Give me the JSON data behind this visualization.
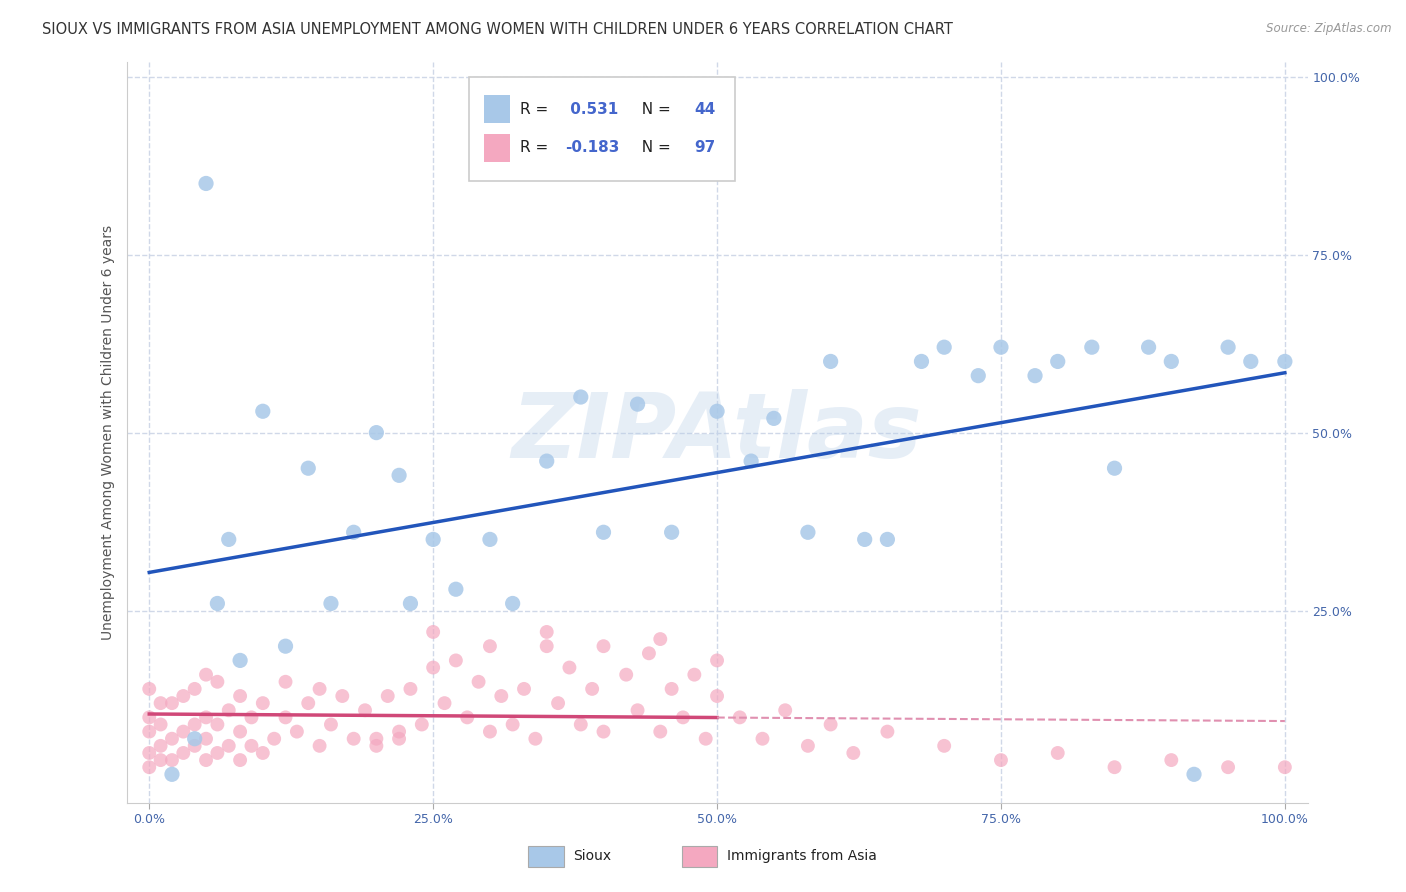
{
  "title": "SIOUX VS IMMIGRANTS FROM ASIA UNEMPLOYMENT AMONG WOMEN WITH CHILDREN UNDER 6 YEARS CORRELATION CHART",
  "source": "Source: ZipAtlas.com",
  "ylabel": "Unemployment Among Women with Children Under 6 years",
  "background_color": "#ffffff",
  "watermark": "ZIPAtlas",
  "sioux_R": 0.531,
  "sioux_N": 44,
  "immigrants_R": -0.183,
  "immigrants_N": 97,
  "sioux_color": "#a8c8e8",
  "immigrants_color": "#f4a8c0",
  "sioux_line_color": "#2255bb",
  "immigrants_line_solid_color": "#d04878",
  "immigrants_line_dash_color": "#e090b0",
  "sioux_scatter_x": [
    0.02,
    0.04,
    0.05,
    0.06,
    0.07,
    0.08,
    0.1,
    0.12,
    0.14,
    0.16,
    0.18,
    0.2,
    0.22,
    0.23,
    0.25,
    0.27,
    0.3,
    0.32,
    0.35,
    0.38,
    0.4,
    0.43,
    0.46,
    0.5,
    0.53,
    0.55,
    0.58,
    0.6,
    0.63,
    0.65,
    0.68,
    0.7,
    0.73,
    0.75,
    0.78,
    0.8,
    0.83,
    0.85,
    0.88,
    0.9,
    0.92,
    0.95,
    0.97,
    1.0
  ],
  "sioux_scatter_y": [
    0.02,
    0.07,
    0.85,
    0.26,
    0.35,
    0.18,
    0.53,
    0.2,
    0.45,
    0.26,
    0.36,
    0.5,
    0.44,
    0.26,
    0.35,
    0.28,
    0.35,
    0.26,
    0.46,
    0.55,
    0.36,
    0.54,
    0.36,
    0.53,
    0.46,
    0.52,
    0.36,
    0.6,
    0.35,
    0.35,
    0.6,
    0.62,
    0.58,
    0.62,
    0.58,
    0.6,
    0.62,
    0.45,
    0.62,
    0.6,
    0.02,
    0.62,
    0.6,
    0.6
  ],
  "immigrants_scatter_x": [
    0.0,
    0.0,
    0.0,
    0.0,
    0.0,
    0.01,
    0.01,
    0.01,
    0.01,
    0.02,
    0.02,
    0.02,
    0.03,
    0.03,
    0.03,
    0.04,
    0.04,
    0.04,
    0.05,
    0.05,
    0.05,
    0.05,
    0.06,
    0.06,
    0.06,
    0.07,
    0.07,
    0.08,
    0.08,
    0.08,
    0.09,
    0.09,
    0.1,
    0.1,
    0.11,
    0.12,
    0.12,
    0.13,
    0.14,
    0.15,
    0.15,
    0.16,
    0.17,
    0.18,
    0.19,
    0.2,
    0.21,
    0.22,
    0.23,
    0.24,
    0.25,
    0.26,
    0.27,
    0.28,
    0.29,
    0.3,
    0.31,
    0.32,
    0.33,
    0.34,
    0.35,
    0.36,
    0.37,
    0.38,
    0.39,
    0.4,
    0.42,
    0.43,
    0.44,
    0.45,
    0.46,
    0.47,
    0.48,
    0.49,
    0.5,
    0.52,
    0.54,
    0.56,
    0.58,
    0.6,
    0.62,
    0.65,
    0.7,
    0.75,
    0.8,
    0.85,
    0.9,
    0.95,
    1.0,
    0.25,
    0.3,
    0.35,
    0.4,
    0.45,
    0.5,
    0.2,
    0.22
  ],
  "immigrants_scatter_y": [
    0.03,
    0.05,
    0.08,
    0.1,
    0.14,
    0.04,
    0.06,
    0.09,
    0.12,
    0.04,
    0.07,
    0.12,
    0.05,
    0.08,
    0.13,
    0.06,
    0.09,
    0.14,
    0.04,
    0.07,
    0.1,
    0.16,
    0.05,
    0.09,
    0.15,
    0.06,
    0.11,
    0.04,
    0.08,
    0.13,
    0.06,
    0.1,
    0.05,
    0.12,
    0.07,
    0.1,
    0.15,
    0.08,
    0.12,
    0.06,
    0.14,
    0.09,
    0.13,
    0.07,
    0.11,
    0.06,
    0.13,
    0.08,
    0.14,
    0.09,
    0.17,
    0.12,
    0.18,
    0.1,
    0.15,
    0.08,
    0.13,
    0.09,
    0.14,
    0.07,
    0.2,
    0.12,
    0.17,
    0.09,
    0.14,
    0.08,
    0.16,
    0.11,
    0.19,
    0.08,
    0.14,
    0.1,
    0.16,
    0.07,
    0.13,
    0.1,
    0.07,
    0.11,
    0.06,
    0.09,
    0.05,
    0.08,
    0.06,
    0.04,
    0.05,
    0.03,
    0.04,
    0.03,
    0.03,
    0.22,
    0.2,
    0.22,
    0.2,
    0.21,
    0.18,
    0.07,
    0.07
  ],
  "xlim": [
    -0.02,
    1.02
  ],
  "ylim": [
    -0.02,
    1.02
  ],
  "xticks": [
    0.0,
    0.25,
    0.5,
    0.75,
    1.0
  ],
  "xtick_labels": [
    "0.0%",
    "25.0%",
    "50.0%",
    "75.0%",
    "100.0%"
  ],
  "yticks": [
    0.25,
    0.5,
    0.75,
    1.0
  ],
  "ytick_labels": [
    "25.0%",
    "50.0%",
    "75.0%",
    "100.0%"
  ],
  "grid_color": "#d0d8e8",
  "title_color": "#333333",
  "tick_color": "#4466aa",
  "label_color": "#555555"
}
